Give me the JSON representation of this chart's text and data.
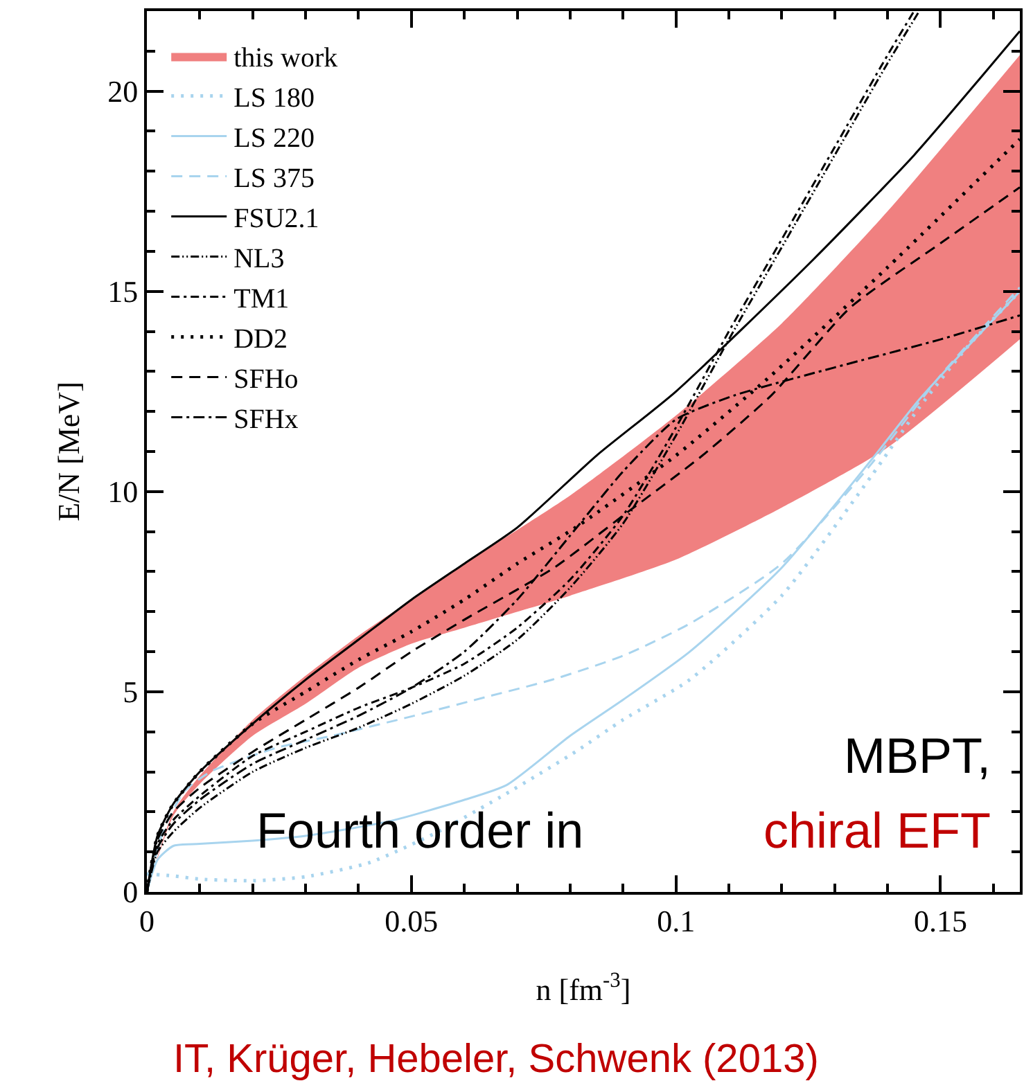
{
  "chart_data": {
    "type": "line",
    "xlabel": "n [fm$^{-3}$]",
    "ylabel": "E/N [MeV]",
    "xlim": [
      0,
      0.165
    ],
    "xticks": [
      0,
      0.05,
      0.1,
      0.15
    ],
    "ylim": [
      0,
      22
    ],
    "yticks": [
      0,
      5,
      10,
      15,
      20
    ],
    "grid": false,
    "legend": "top left",
    "series": [
      {
        "name": "this work",
        "type": "area",
        "color": "#f08080",
        "x": [
          0,
          0.005,
          0.01,
          0.02,
          0.03,
          0.04,
          0.05,
          0.06,
          0.08,
          0.1,
          0.12,
          0.14,
          0.165
        ],
        "values": [
          null,
          null,
          null,
          null,
          null,
          null,
          null,
          null,
          null,
          null,
          null,
          null,
          null
        ],
        "lower": [
          0,
          1.9,
          2.7,
          3.9,
          4.7,
          5.6,
          6.2,
          6.6,
          7.4,
          8.3,
          9.6,
          11.1,
          13.8
        ],
        "upper": [
          0,
          2.0,
          2.9,
          4.3,
          5.4,
          6.4,
          7.3,
          8.2,
          9.9,
          11.9,
          14.2,
          17.0,
          20.9
        ]
      },
      {
        "name": "LS 180",
        "color": "#a8d4ee",
        "line_style": "dotted",
        "x": [
          0,
          0.005,
          0.01,
          0.02,
          0.03,
          0.042,
          0.055,
          0.068,
          0.081,
          0.09,
          0.1026,
          0.12,
          0.137,
          0.146,
          0.155,
          0.165
        ],
        "values": [
          0.45,
          0.4,
          0.32,
          0.28,
          0.38,
          0.73,
          1.5,
          2.46,
          3.5,
          4.3,
          5.3,
          7.4,
          10.4,
          12.1,
          13.6,
          15.0
        ]
      },
      {
        "name": "LS 220",
        "color": "#a8d4ee",
        "line_style": "solid",
        "x": [
          0,
          0.002,
          0.005,
          0.01,
          0.02,
          0.03,
          0.046,
          0.06,
          0.068,
          0.08,
          0.09,
          0.1026,
          0.12,
          0.137,
          0.146,
          0.155,
          0.165
        ],
        "values": [
          0,
          0.8,
          1.15,
          1.2,
          1.28,
          1.4,
          1.77,
          2.3,
          2.67,
          3.9,
          4.8,
          6.0,
          8.1,
          10.8,
          12.3,
          13.6,
          15.0
        ]
      },
      {
        "name": "LS 375",
        "color": "#a8d4ee",
        "line_style": "dashed",
        "x": [
          0,
          0.003,
          0.007,
          0.012,
          0.0245,
          0.035,
          0.0505,
          0.065,
          0.0766,
          0.09,
          0.1026,
          0.12,
          0.137,
          0.15,
          0.165
        ],
        "values": [
          0,
          1.5,
          2.5,
          3.0,
          3.6,
          3.9,
          4.4,
          4.9,
          5.3,
          5.9,
          6.7,
          8.2,
          10.7,
          12.9,
          15.1
        ]
      },
      {
        "name": "FSU2.1",
        "color": "#000000",
        "line_style": "solid",
        "x": [
          0,
          0.002,
          0.005,
          0.01,
          0.02,
          0.03,
          0.04,
          0.05,
          0.06,
          0.07,
          0.085,
          0.1,
          0.126,
          0.145,
          0.158,
          0.165
        ],
        "values": [
          0,
          1.4,
          2.2,
          3.0,
          4.2,
          5.3,
          6.3,
          7.3,
          8.2,
          9.1,
          10.9,
          12.5,
          15.8,
          18.4,
          20.4,
          21.5
        ]
      },
      {
        "name": "NL3",
        "color": "#000000",
        "line_style": "dashdotdot",
        "x": [
          0,
          0.002,
          0.005,
          0.01,
          0.02,
          0.03,
          0.04,
          0.05,
          0.06,
          0.07,
          0.08,
          0.09,
          0.1,
          0.11,
          0.12,
          0.13,
          0.14,
          0.146
        ],
        "values": [
          0,
          1.0,
          1.5,
          2.1,
          3.0,
          3.6,
          4.1,
          4.7,
          5.4,
          6.3,
          7.6,
          9.2,
          11.4,
          13.8,
          16.1,
          18.4,
          20.7,
          22
        ]
      },
      {
        "name": "TM1",
        "color": "#000000",
        "line_style": "dashdot",
        "x": [
          0,
          0.002,
          0.005,
          0.01,
          0.02,
          0.03,
          0.04,
          0.05,
          0.06,
          0.07,
          0.08,
          0.09,
          0.1,
          0.11,
          0.12,
          0.13,
          0.14,
          0.145
        ],
        "values": [
          0,
          1.2,
          1.8,
          2.4,
          3.4,
          4.0,
          4.6,
          5.1,
          5.7,
          6.6,
          7.8,
          9.4,
          11.6,
          14.0,
          16.3,
          18.6,
          20.9,
          22
        ]
      },
      {
        "name": "DD2",
        "color": "#000000",
        "line_style": "dotted",
        "x": [
          0,
          0.002,
          0.005,
          0.01,
          0.02,
          0.03,
          0.04,
          0.05,
          0.06,
          0.07,
          0.081,
          0.1,
          0.118,
          0.14,
          0.165
        ],
        "values": [
          0,
          1.4,
          2.2,
          3.0,
          4.2,
          5.0,
          5.8,
          6.5,
          7.3,
          8.2,
          9.1,
          10.9,
          12.9,
          15.6,
          18.8
        ]
      },
      {
        "name": "SFHo",
        "color": "#000000",
        "line_style": "dashed",
        "x": [
          0,
          0.002,
          0.005,
          0.01,
          0.02,
          0.03,
          0.04,
          0.05,
          0.06,
          0.077,
          0.09,
          0.105,
          0.118,
          0.133,
          0.15,
          0.165
        ],
        "values": [
          0,
          1.3,
          2.0,
          2.6,
          3.5,
          4.3,
          5.1,
          6.0,
          6.8,
          8.1,
          9.4,
          10.9,
          12.4,
          14.6,
          16.2,
          17.6
        ]
      },
      {
        "name": "SFHx",
        "color": "#000000",
        "line_style": "longdashdot",
        "x": [
          0,
          0.002,
          0.005,
          0.01,
          0.02,
          0.03,
          0.04,
          0.05,
          0.06,
          0.07,
          0.08,
          0.09,
          0.1,
          0.111,
          0.13,
          0.15,
          0.165
        ],
        "values": [
          0,
          1.1,
          1.7,
          2.3,
          3.2,
          3.8,
          4.4,
          5.1,
          6.0,
          7.3,
          8.9,
          10.5,
          11.8,
          12.4,
          13.1,
          13.8,
          14.4
        ]
      }
    ],
    "annotations": [
      "MBPT,",
      "Fourth order in",
      "chiral EFT",
      "IT, Krüger, Hebeler, Schwenk (2013)"
    ]
  }
}
